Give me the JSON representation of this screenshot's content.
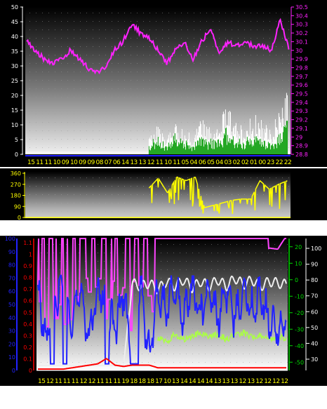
{
  "colors": {
    "wind_dir": "#ffff00",
    "pressure": "#ff22ff",
    "gust": "#ffffff",
    "wind": "#009900",
    "wind_edge": "#66ff66",
    "humidity": "#ff44ff",
    "temperature": "#2222ff",
    "dewpoint": "#aaff44",
    "uv": "#ff0000",
    "temp_scale": "#eeeeee",
    "axis_left_bottom": "#ffffff",
    "axis_pressure": "#ff22ff",
    "axis_xlabels": "#ffff00",
    "axis_hum_left": "#2222ff",
    "axis_rain_left": "#ff0000",
    "axis_green": "#00dd00"
  },
  "chart_data": [
    {
      "type": "line",
      "y_left_ticks": [
        "50",
        "45",
        "40",
        "35",
        "30",
        "25",
        "20",
        "15",
        "10",
        "5",
        "0"
      ],
      "y_right_ticks": [
        "30.5",
        "30.4",
        "30.3",
        "30.2",
        "30.1",
        "30",
        "29.9",
        "29.8",
        "29.7",
        "29.6",
        "29.5",
        "29.4",
        "29.3",
        "29.2",
        "29.1",
        "29",
        "28.9",
        "28.8"
      ],
      "x_ticks": [
        "15",
        "11",
        "11",
        "10",
        "09",
        "10",
        "09",
        "09",
        "08",
        "07",
        "06",
        "14",
        "13",
        "13",
        "12",
        "11",
        "10",
        "11",
        "05",
        "04",
        "06",
        "05",
        "04",
        "03",
        "02",
        "02",
        "01",
        "00",
        "23",
        "22",
        "22"
      ],
      "ylim_left": [
        0,
        50
      ],
      "ylim_right": [
        28.8,
        30.5
      ],
      "series": [
        {
          "name": "",
          "axis": "right",
          "color_key": "pressure",
          "values": [
            30.1,
            30.0,
            29.9,
            29.85,
            29.9,
            30.0,
            29.9,
            29.8,
            29.75,
            29.8,
            30.0,
            30.1,
            30.3,
            30.2,
            30.15,
            30.0,
            29.85,
            30.0,
            30.1,
            29.9,
            30.1,
            30.25,
            29.95,
            30.1,
            30.05,
            30.1,
            30.05,
            30.05,
            30.0,
            30.35,
            30.0
          ]
        },
        {
          "name": "",
          "axis": "left",
          "color_key": "gust",
          "start_index": 14,
          "values": [
            7,
            9,
            5,
            11,
            8,
            6,
            12,
            9,
            8,
            17,
            10,
            9,
            13,
            11,
            9,
            13,
            23
          ]
        },
        {
          "name": "",
          "axis": "left",
          "color_key": "wind",
          "start_index": 14,
          "values": [
            4,
            6,
            3,
            7,
            5,
            3,
            6,
            5,
            5,
            9,
            6,
            5,
            7,
            6,
            5,
            7,
            11
          ]
        }
      ]
    },
    {
      "type": "line",
      "y_left_ticks": [
        "360",
        "270",
        "180",
        "90",
        "0"
      ],
      "ylim_left": [
        0,
        360
      ],
      "series": [
        {
          "name": "",
          "axis": "left",
          "color_key": "wind_dir",
          "start_index": 14,
          "values": [
            240,
            320,
            200,
            330,
            300,
            330,
            80,
            100,
            120,
            140,
            150,
            150,
            300,
            230,
            270,
            300
          ]
        }
      ]
    },
    {
      "type": "line",
      "y_hum_ticks": [
        "100",
        "90",
        "80",
        "70",
        "60",
        "50",
        "40",
        "30",
        "20",
        "10",
        "0"
      ],
      "y_rain_ticks": [
        "1.1",
        "1",
        "0.9",
        "0.8",
        "0.7",
        "0.6",
        "0.5",
        "0.4",
        "0.3",
        "0.2",
        "0.1",
        "0"
      ],
      "y_green_ticks": [
        "20",
        "10",
        "0",
        "-10",
        "-20",
        "-30",
        "-40",
        "-50"
      ],
      "y_right_ticks": [
        "100",
        "90",
        "80",
        "70",
        "60",
        "50",
        "40",
        "30"
      ],
      "x_ticks": [
        "15",
        "12",
        "11",
        "11",
        "11",
        "12",
        "12",
        "11",
        "11",
        "11",
        "19",
        "18",
        "18",
        "18",
        "17",
        "10",
        "13",
        "14",
        "14",
        "14",
        "14",
        "13",
        "13",
        "13",
        "12",
        "13",
        "12",
        "12",
        "12",
        "12"
      ],
      "ylim_hum": [
        0,
        100
      ],
      "ylim_green": [
        -55,
        25
      ],
      "series": [
        {
          "name": "",
          "axis": "hum",
          "color_key": "humidity",
          "values": [
            95,
            40,
            100,
            60,
            100,
            35,
            100,
            90,
            100,
            60,
            100,
            100,
            100,
            100,
            100,
            100,
            100,
            100,
            100,
            100,
            100,
            100,
            100,
            100,
            100,
            100,
            100,
            100,
            93,
            97
          ]
        },
        {
          "name": "",
          "axis": "hum",
          "color_key": "temperature",
          "values": [
            60,
            20,
            55,
            65,
            40,
            58,
            25,
            62,
            50,
            30,
            60,
            5,
            65,
            10,
            60,
            45,
            62,
            40,
            64,
            42,
            62,
            40,
            60,
            38,
            65,
            45,
            60,
            35,
            30,
            40
          ]
        },
        {
          "name": "",
          "axis": "green",
          "color_key": "temp_scale",
          "values": [
            -52,
            -52,
            -52,
            -52,
            -52,
            -52,
            -52,
            -52,
            -52,
            -52,
            -52,
            -2,
            -4,
            -2,
            -6,
            -1,
            -4,
            0,
            -5,
            -1,
            -4,
            0,
            -4,
            1,
            -3,
            0,
            -4,
            -1,
            -2,
            -3
          ]
        },
        {
          "name": "",
          "axis": "green",
          "color_key": "dewpoint",
          "start_index": 14,
          "values": [
            -35,
            -38,
            -33,
            -36,
            -34,
            -32,
            -35,
            -33,
            -36,
            -34,
            -32,
            -35,
            -34,
            -36,
            -35,
            -35
          ]
        },
        {
          "name": "",
          "axis": "hum",
          "color_key": "uv",
          "values": [
            0,
            0,
            0,
            0,
            1,
            2,
            3,
            4,
            8,
            3,
            2,
            3,
            3,
            3,
            1,
            1,
            1,
            1,
            1,
            1,
            1,
            1,
            1,
            1,
            1,
            1,
            1,
            1,
            1,
            1
          ]
        }
      ]
    }
  ]
}
